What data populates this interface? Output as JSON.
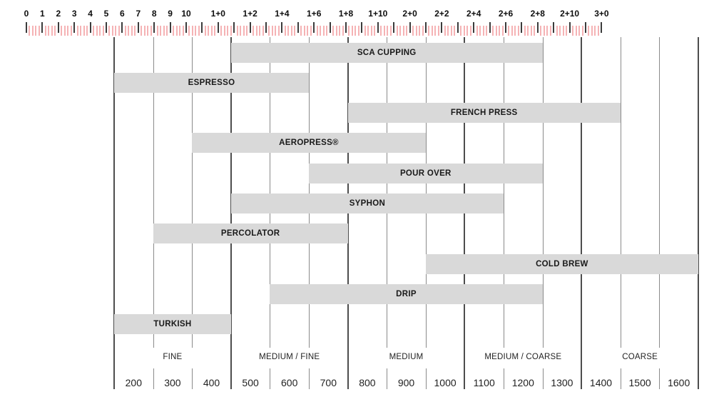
{
  "colors": {
    "bar_fill": "#d9d9d9",
    "bar_text": "#191919",
    "grid_thick": "#4d4d4d",
    "grid_thin": "#8a8a8a",
    "ruler_major_tick": "#3c3c3c",
    "ruler_minor_tick": "#f5b3b5",
    "ruler_text": "#0d0d0d",
    "label_text": "#1f1f1f",
    "background": "#ffffff"
  },
  "ruler": {
    "min_unit": 0,
    "max_unit": 36,
    "subdivisions_per_unit": 5,
    "labels": [
      {
        "text": "0",
        "unit": 0
      },
      {
        "text": "1",
        "unit": 1
      },
      {
        "text": "2",
        "unit": 2
      },
      {
        "text": "3",
        "unit": 3
      },
      {
        "text": "4",
        "unit": 4
      },
      {
        "text": "5",
        "unit": 5
      },
      {
        "text": "6",
        "unit": 6
      },
      {
        "text": "7",
        "unit": 7
      },
      {
        "text": "8",
        "unit": 8
      },
      {
        "text": "9",
        "unit": 9
      },
      {
        "text": "10",
        "unit": 10
      },
      {
        "text": "1+0",
        "unit": 12
      },
      {
        "text": "1+2",
        "unit": 14
      },
      {
        "text": "1+4",
        "unit": 16
      },
      {
        "text": "1+6",
        "unit": 18
      },
      {
        "text": "1+8",
        "unit": 20
      },
      {
        "text": "1+10",
        "unit": 22
      },
      {
        "text": "2+0",
        "unit": 24
      },
      {
        "text": "2+2",
        "unit": 26
      },
      {
        "text": "2+4",
        "unit": 28
      },
      {
        "text": "2+6",
        "unit": 30
      },
      {
        "text": "2+8",
        "unit": 32
      },
      {
        "text": "2+10",
        "unit": 34
      },
      {
        "text": "3+0",
        "unit": 36
      }
    ]
  },
  "chart_data": {
    "type": "bar",
    "orientation": "horizontal-range",
    "x_unit": "microns",
    "x_range": [
      150,
      1650
    ],
    "grid": "on",
    "bars": [
      {
        "label": "SCA CUPPING",
        "start": 450,
        "end": 1250
      },
      {
        "label": "ESPRESSO",
        "start": 150,
        "end": 650
      },
      {
        "label": "FRENCH PRESS",
        "start": 750,
        "end": 1450
      },
      {
        "label": "AEROPRESS®",
        "start": 350,
        "end": 950
      },
      {
        "label": "POUR OVER",
        "start": 650,
        "end": 1250
      },
      {
        "label": "SYPHON",
        "start": 450,
        "end": 1150
      },
      {
        "label": "PERCOLATOR",
        "start": 250,
        "end": 750
      },
      {
        "label": "COLD BREW",
        "start": 950,
        "end": 1650
      },
      {
        "label": "DRIP",
        "start": 550,
        "end": 1250
      },
      {
        "label": "TURKISH",
        "start": 150,
        "end": 450
      }
    ],
    "x_ticks": [
      200,
      300,
      400,
      500,
      600,
      700,
      800,
      900,
      1000,
      1100,
      1200,
      1300,
      1400,
      1500,
      1600
    ],
    "grind_categories": [
      {
        "label": "FINE",
        "start": 150,
        "end": 450
      },
      {
        "label": "MEDIUM / FINE",
        "start": 450,
        "end": 750
      },
      {
        "label": "MEDIUM",
        "start": 750,
        "end": 1050
      },
      {
        "label": "MEDIUM / COARSE",
        "start": 1050,
        "end": 1350
      },
      {
        "label": "COARSE",
        "start": 1350,
        "end": 1650
      }
    ]
  }
}
